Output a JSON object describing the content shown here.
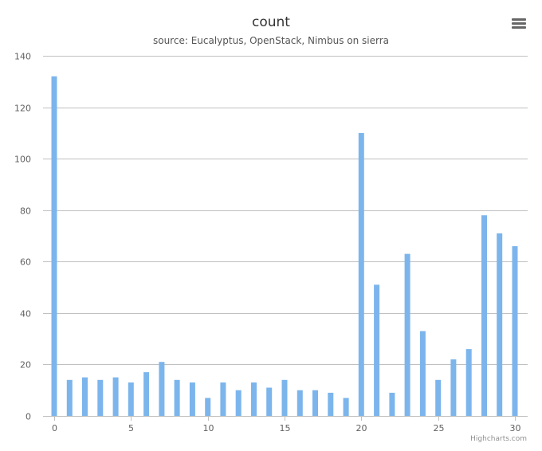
{
  "chart_data": {
    "type": "bar",
    "title": "count",
    "subtitle": "source: Eucalyptus, OpenStack, Nimbus on sierra",
    "x": [
      0,
      1,
      2,
      3,
      4,
      5,
      6,
      7,
      8,
      9,
      10,
      11,
      12,
      13,
      14,
      15,
      16,
      17,
      18,
      19,
      20,
      21,
      22,
      23,
      24,
      25,
      26,
      27,
      28,
      29,
      30
    ],
    "values": [
      132,
      14,
      15,
      14,
      15,
      13,
      17,
      21,
      14,
      13,
      7,
      13,
      10,
      13,
      11,
      14,
      10,
      10,
      9,
      7,
      110,
      51,
      9,
      63,
      33,
      14,
      22,
      26,
      78,
      71,
      66
    ],
    "x_ticks": [
      0,
      5,
      10,
      15,
      20,
      25,
      30
    ],
    "y_ticks": [
      0,
      20,
      40,
      60,
      80,
      100,
      120,
      140
    ],
    "ylim": [
      0,
      140
    ],
    "xlim": [
      0,
      30
    ],
    "grid": true,
    "legend": "none",
    "bar_color": "#7cb5ec",
    "grid_color": "#c0c0c0"
  },
  "credits": "Highcharts.com",
  "menu": {
    "icon": "hamburger-menu-icon"
  }
}
